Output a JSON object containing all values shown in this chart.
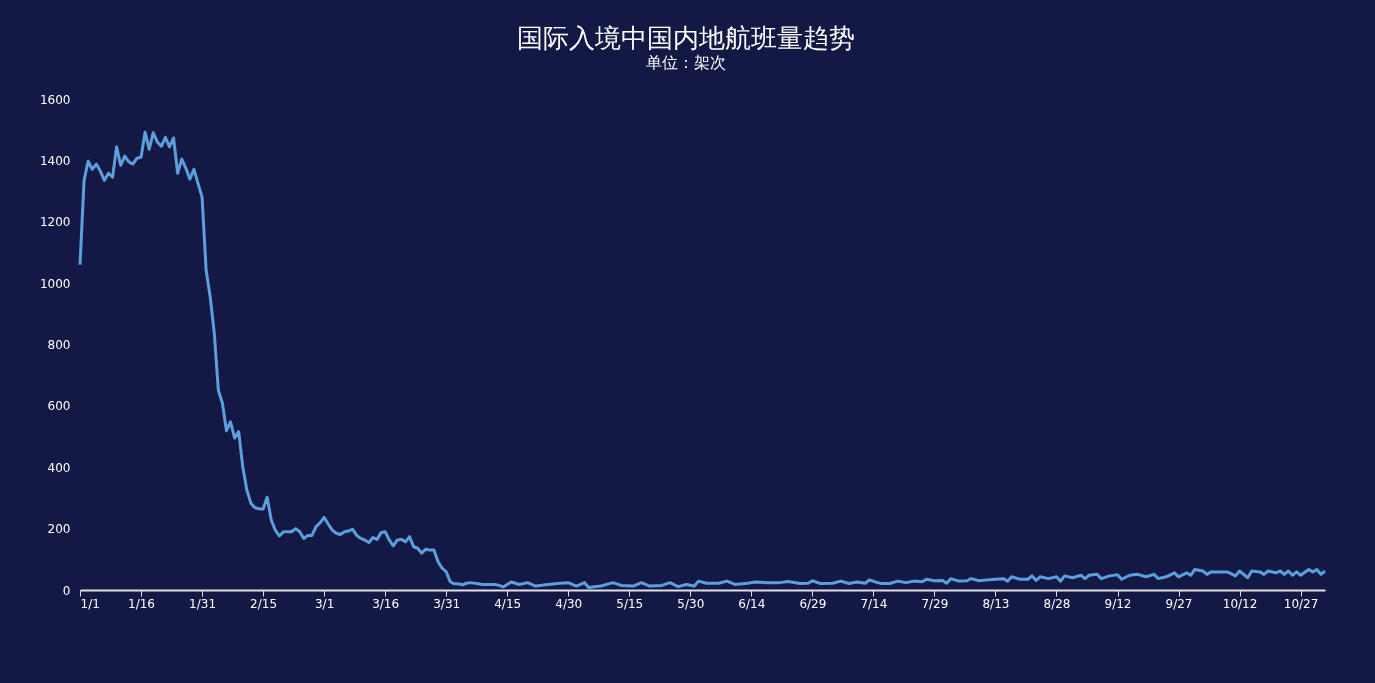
{
  "chart_data": {
    "type": "line",
    "title": "国际入境中国内地航班量趋势",
    "subtitle": "单位：架次",
    "grid": false,
    "xlim": [
      "--01-01",
      "--11-02"
    ],
    "ylim": [
      0,
      1600
    ],
    "yticks": [
      0,
      200,
      400,
      600,
      800,
      1000,
      1200,
      1400,
      1600
    ],
    "xticks": [
      {
        "value": "--01-01",
        "label": "1/1"
      },
      {
        "value": "--01-16",
        "label": "1/16"
      },
      {
        "value": "--01-31",
        "label": "1/31"
      },
      {
        "value": "--02-15",
        "label": "2/15"
      },
      {
        "value": "--03-01",
        "label": "3/1"
      },
      {
        "value": "--03-16",
        "label": "3/16"
      },
      {
        "value": "--03-31",
        "label": "3/31"
      },
      {
        "value": "--04-15",
        "label": "4/15"
      },
      {
        "value": "--04-30",
        "label": "4/30"
      },
      {
        "value": "--05-15",
        "label": "5/15"
      },
      {
        "value": "--05-30",
        "label": "5/30"
      },
      {
        "value": "--06-14",
        "label": "6/14"
      },
      {
        "value": "--06-29",
        "label": "6/29"
      },
      {
        "value": "--07-14",
        "label": "7/14"
      },
      {
        "value": "--07-29",
        "label": "7/29"
      },
      {
        "value": "--08-13",
        "label": "8/13"
      },
      {
        "value": "--08-28",
        "label": "8/28"
      },
      {
        "value": "--09-12",
        "label": "9/12"
      },
      {
        "value": "--09-27",
        "label": "9/27"
      },
      {
        "value": "--10-12",
        "label": "10/12"
      },
      {
        "value": "--10-27",
        "label": "10/27"
      }
    ],
    "x": [
      "--01-01",
      "--01-02",
      "--01-03",
      "--01-04",
      "--01-05",
      "--01-06",
      "--01-07",
      "--01-08",
      "--01-09",
      "--01-10",
      "--01-11",
      "--01-12",
      "--01-13",
      "--01-14",
      "--01-15",
      "--01-16",
      "--01-17",
      "--01-18",
      "--01-19",
      "--01-20",
      "--01-21",
      "--01-22",
      "--01-23",
      "--01-24",
      "--01-25",
      "--01-26",
      "--01-27",
      "--01-28",
      "--01-29",
      "--01-30",
      "--01-31",
      "--02-01",
      "--02-02",
      "--02-03",
      "--02-04",
      "--02-05",
      "--02-06",
      "--02-07",
      "--02-08",
      "--02-09",
      "--02-10",
      "--02-11",
      "--02-12",
      "--02-13",
      "--02-14",
      "--02-15",
      "--02-16",
      "--02-17",
      "--02-18",
      "--02-19",
      "--02-20",
      "--02-21",
      "--02-22",
      "--02-23",
      "--02-24",
      "--02-25",
      "--02-26",
      "--02-27",
      "--02-28",
      "--02-29",
      "--03-01",
      "--03-02",
      "--03-03",
      "--03-04",
      "--03-05",
      "--03-06",
      "--03-07",
      "--03-08",
      "--03-09",
      "--03-10",
      "--03-11",
      "--03-12",
      "--03-13",
      "--03-14",
      "--03-15",
      "--03-16",
      "--03-17",
      "--03-18",
      "--03-19",
      "--03-20",
      "--03-21",
      "--03-22",
      "--03-23",
      "--03-24",
      "--03-25",
      "--03-26",
      "--03-27",
      "--03-28",
      "--03-29",
      "--03-30",
      "--03-31",
      "--04-01",
      "--04-02",
      "--04-03",
      "--04-04",
      "--04-05",
      "--04-06",
      "--04-09",
      "--04-12",
      "--04-13",
      "--04-14",
      "--04-16",
      "--04-18",
      "--04-20",
      "--04-22",
      "--04-25",
      "--04-28",
      "--04-30",
      "--05-02",
      "--05-04",
      "--05-05",
      "--05-08",
      "--05-11",
      "--05-13",
      "--05-16",
      "--05-18",
      "--05-20",
      "--05-23",
      "--05-25",
      "--05-27",
      "--05-29",
      "--05-31",
      "--06-01",
      "--06-03",
      "--06-06",
      "--06-08",
      "--06-10",
      "--06-13",
      "--06-15",
      "--06-18",
      "--06-21",
      "--06-23",
      "--06-26",
      "--06-28",
      "--06-29",
      "--07-01",
      "--07-04",
      "--07-06",
      "--07-08",
      "--07-10",
      "--07-12",
      "--07-13",
      "--07-15",
      "--07-16",
      "--07-18",
      "--07-20",
      "--07-22",
      "--07-24",
      "--07-26",
      "--07-27",
      "--07-29",
      "--07-31",
      "--08-01",
      "--08-02",
      "--08-04",
      "--08-06",
      "--08-07",
      "--08-09",
      "--08-11",
      "--08-13",
      "--08-15",
      "--08-16",
      "--08-17",
      "--08-19",
      "--08-21",
      "--08-22",
      "--08-23",
      "--08-24",
      "--08-26",
      "--08-28",
      "--08-29",
      "--08-30",
      "--09-01",
      "--09-03",
      "--09-04",
      "--09-05",
      "--09-07",
      "--09-08",
      "--09-10",
      "--09-12",
      "--09-13",
      "--09-15",
      "--09-17",
      "--09-19",
      "--09-21",
      "--09-22",
      "--09-24",
      "--09-26",
      "--09-27",
      "--09-29",
      "--09-30",
      "--10-01",
      "--10-03",
      "--10-04",
      "--10-05",
      "--10-07",
      "--10-09",
      "--10-11",
      "--10-12",
      "--10-14",
      "--10-15",
      "--10-17",
      "--10-18",
      "--10-19",
      "--10-21",
      "--10-22",
      "--10-23",
      "--10-24",
      "--10-25",
      "--10-26",
      "--10-27",
      "--10-29",
      "--10-30",
      "--10-31",
      "--11-01",
      "--11-02"
    ],
    "series": [
      {
        "color": "#5b9fdc",
        "values": [
          1060,
          1335,
          1397,
          1371,
          1388,
          1365,
          1335,
          1358,
          1345,
          1444,
          1384,
          1414,
          1395,
          1388,
          1407,
          1410,
          1492,
          1436,
          1490,
          1460,
          1446,
          1475,
          1444,
          1473,
          1358,
          1404,
          1375,
          1339,
          1371,
          1325,
          1280,
          1042,
          955,
          837,
          651,
          609,
          519,
          548,
          495,
          516,
          402,
          326,
          283,
          268,
          265,
          264,
          302,
          228,
          195,
          176,
          190,
          190,
          190,
          200,
          190,
          168,
          178,
          178,
          206,
          219,
          237,
          215,
          195,
          185,
          181,
          190,
          192,
          198,
          178,
          168,
          163,
          155,
          171,
          165,
          187,
          190,
          163,
          144,
          163,
          165,
          157,
          174,
          141,
          136,
          120,
          133,
          130,
          130,
          92,
          71,
          60,
          27,
          20,
          20,
          17,
          22,
          24,
          18,
          18,
          15,
          10,
          26,
          18,
          24,
          13,
          18,
          22,
          24,
          13,
          24,
          8,
          13,
          24,
          15,
          13,
          24,
          13,
          15,
          24,
          11,
          18,
          13,
          29,
          22,
          22,
          29,
          18,
          22,
          26,
          24,
          24,
          28,
          21,
          22,
          30,
          21,
          22,
          29,
          21,
          26,
          22,
          33,
          24,
          21,
          21,
          29,
          24,
          29,
          27,
          35,
          30,
          31,
          22,
          37,
          29,
          30,
          37,
          30,
          33,
          35,
          37,
          29,
          43,
          35,
          35,
          46,
          31,
          43,
          37,
          43,
          29,
          46,
          40,
          48,
          37,
          48,
          51,
          37,
          46,
          50,
          35,
          48,
          51,
          43,
          51,
          37,
          43,
          56,
          43,
          56,
          48,
          67,
          62,
          51,
          59,
          59,
          59,
          46,
          62,
          40,
          62,
          59,
          51,
          62,
          56,
          62,
          51,
          62,
          48,
          59,
          48,
          67,
          59,
          67,
          51,
          62
        ]
      }
    ]
  }
}
